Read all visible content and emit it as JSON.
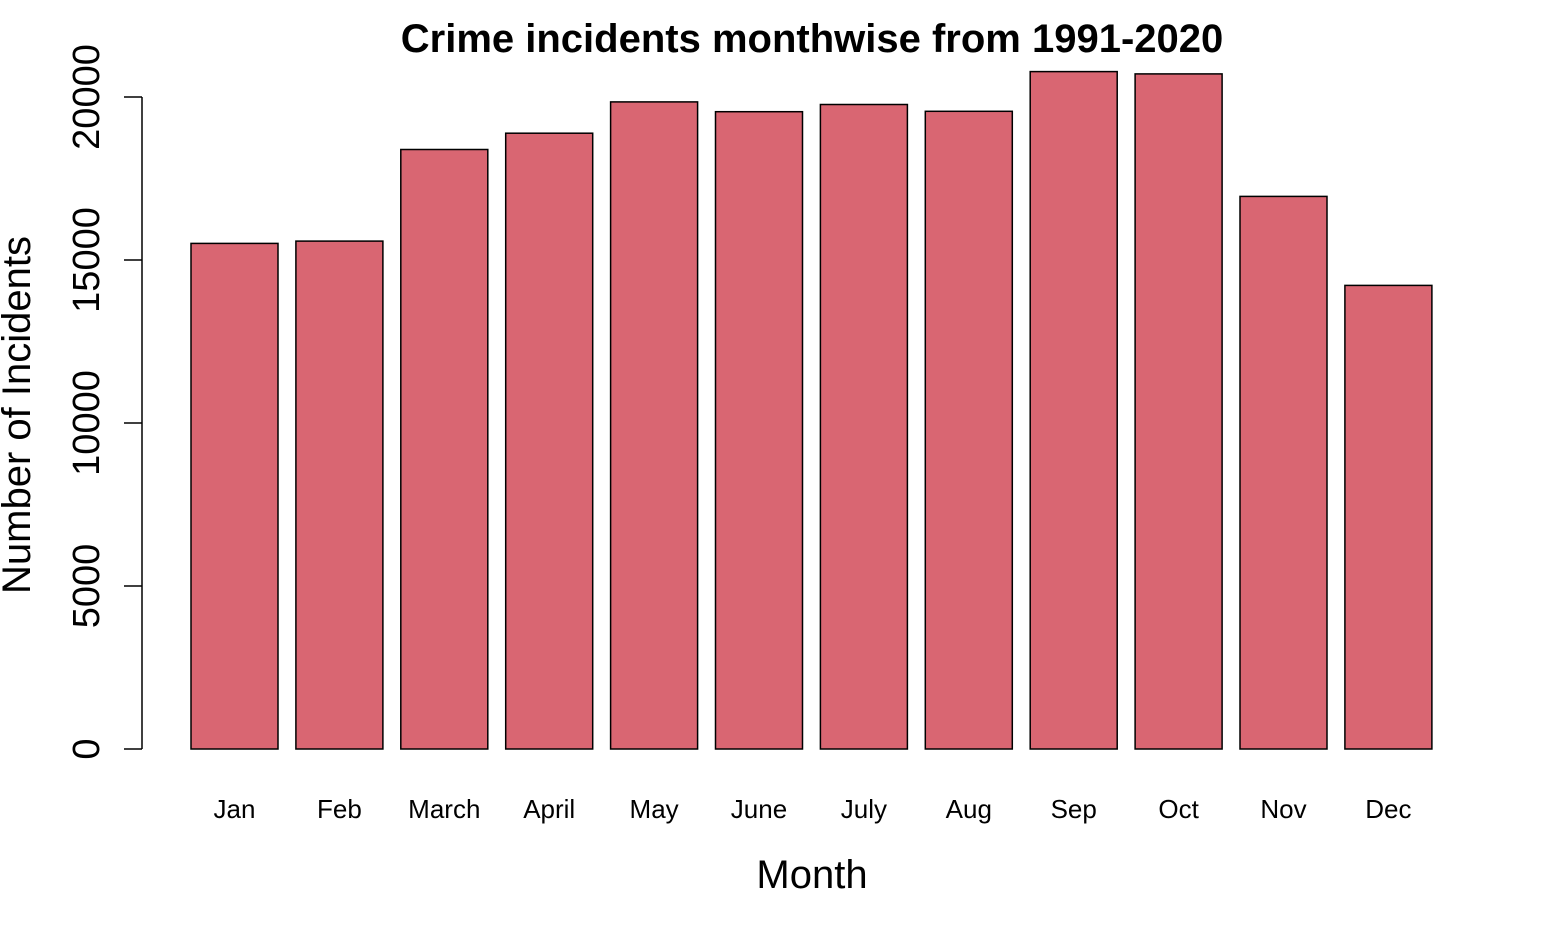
{
  "chart_data": {
    "type": "bar",
    "title": "Crime incidents monthwise from 1991-2020",
    "xlabel": "Month",
    "ylabel": "Number of Incidents",
    "categories": [
      "Jan",
      "Feb",
      "March",
      "April",
      "May",
      "June",
      "July",
      "Aug",
      "Sep",
      "Oct",
      "Nov",
      "Dec"
    ],
    "values": [
      15510,
      15580,
      18390,
      18890,
      19850,
      19550,
      19770,
      19560,
      20780,
      20710,
      16950,
      14220
    ],
    "yticks": [
      0,
      5000,
      10000,
      15000,
      20000
    ],
    "ylim": [
      0,
      21000
    ],
    "bar_color": "#D96672",
    "bar_border_color": "#000000",
    "grid": false,
    "legend": "none"
  }
}
